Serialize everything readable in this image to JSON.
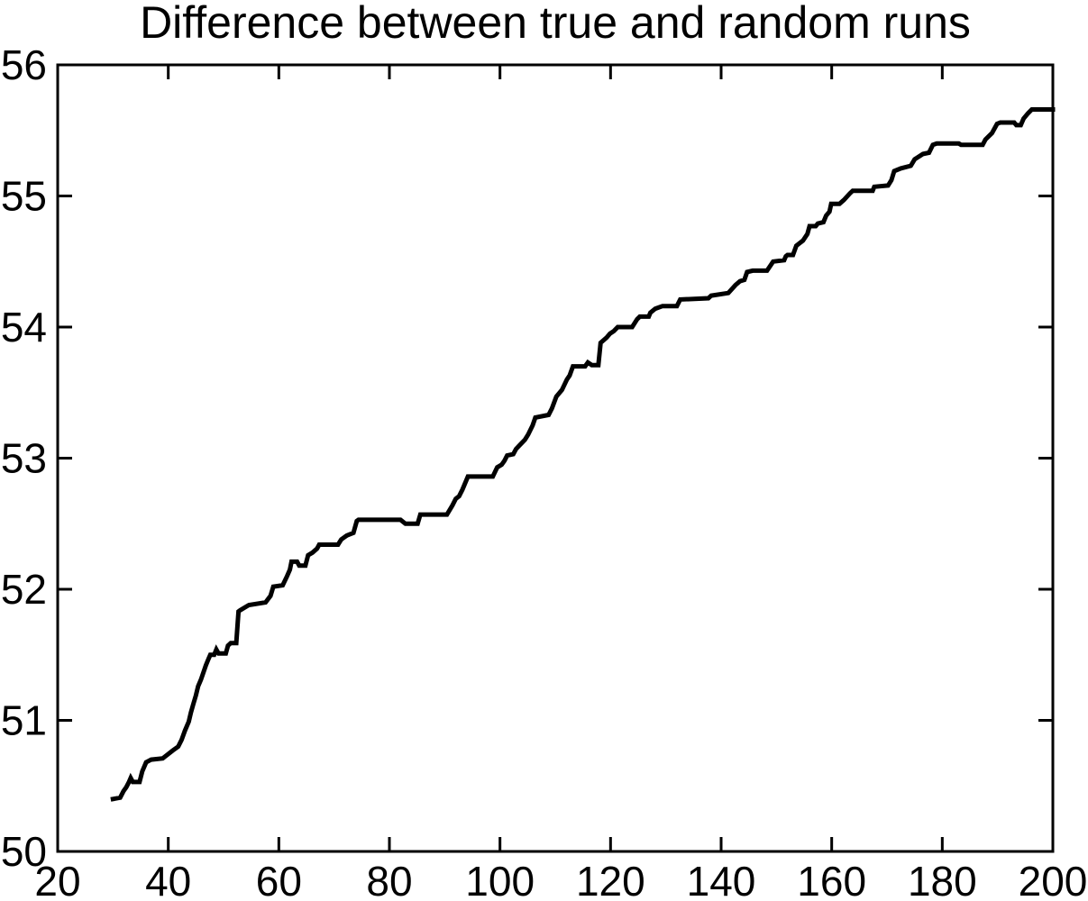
{
  "chart_data": {
    "type": "line",
    "title": "Difference between true and random runs",
    "xlabel": "",
    "ylabel": "",
    "xlim": [
      20,
      200
    ],
    "ylim": [
      50,
      56
    ],
    "xticks": [
      20,
      40,
      60,
      80,
      100,
      120,
      140,
      160,
      180,
      200
    ],
    "yticks": [
      50,
      51,
      52,
      53,
      54,
      55,
      56
    ],
    "grid": false,
    "legend_position": "none",
    "background_color": "#ffffff",
    "axis_color": "#000000",
    "line_color": "#000000",
    "series": [
      {
        "name": "difference-true-vs-random",
        "points": [
          [
            30.0,
            50.4
          ],
          [
            31.3,
            50.41
          ],
          [
            31.9,
            50.46
          ],
          [
            32.4,
            50.49
          ],
          [
            32.9,
            50.53
          ],
          [
            33.2,
            50.56
          ],
          [
            33.6,
            50.53
          ],
          [
            34.8,
            50.53
          ],
          [
            35.3,
            50.61
          ],
          [
            36.0,
            50.68
          ],
          [
            36.9,
            50.7
          ],
          [
            39.0,
            50.71
          ],
          [
            39.6,
            50.73
          ],
          [
            40.8,
            50.77
          ],
          [
            41.8,
            50.8
          ],
          [
            42.4,
            50.85
          ],
          [
            43.0,
            50.92
          ],
          [
            43.7,
            50.99
          ],
          [
            44.1,
            51.06
          ],
          [
            44.5,
            51.12
          ],
          [
            45.0,
            51.19
          ],
          [
            45.4,
            51.26
          ],
          [
            45.9,
            51.31
          ],
          [
            46.4,
            51.37
          ],
          [
            46.8,
            51.42
          ],
          [
            47.3,
            51.47
          ],
          [
            47.6,
            51.5
          ],
          [
            48.3,
            51.5
          ],
          [
            48.7,
            51.54
          ],
          [
            49.1,
            51.51
          ],
          [
            50.4,
            51.51
          ],
          [
            50.8,
            51.57
          ],
          [
            51.3,
            51.59
          ],
          [
            52.3,
            51.59
          ],
          [
            52.7,
            51.83
          ],
          [
            53.0,
            51.84
          ],
          [
            54.2,
            51.87
          ],
          [
            54.6,
            51.88
          ],
          [
            57.6,
            51.9
          ],
          [
            58.5,
            51.95
          ],
          [
            59.0,
            52.02
          ],
          [
            60.7,
            52.03
          ],
          [
            61.5,
            52.1
          ],
          [
            62.0,
            52.15
          ],
          [
            62.3,
            52.21
          ],
          [
            63.3,
            52.21
          ],
          [
            63.7,
            52.18
          ],
          [
            64.8,
            52.18
          ],
          [
            65.3,
            52.26
          ],
          [
            66.1,
            52.28
          ],
          [
            66.9,
            52.31
          ],
          [
            67.3,
            52.34
          ],
          [
            70.7,
            52.34
          ],
          [
            71.3,
            52.38
          ],
          [
            72.3,
            52.41
          ],
          [
            73.5,
            52.43
          ],
          [
            74.1,
            52.52
          ],
          [
            74.4,
            52.53
          ],
          [
            82.0,
            52.53
          ],
          [
            82.9,
            52.5
          ],
          [
            85.1,
            52.5
          ],
          [
            85.6,
            52.57
          ],
          [
            90.4,
            52.57
          ],
          [
            91.4,
            52.64
          ],
          [
            92.0,
            52.69
          ],
          [
            92.6,
            52.71
          ],
          [
            93.2,
            52.76
          ],
          [
            94.2,
            52.86
          ],
          [
            98.7,
            52.86
          ],
          [
            99.5,
            52.93
          ],
          [
            100.3,
            52.95
          ],
          [
            100.8,
            52.98
          ],
          [
            101.3,
            53.02
          ],
          [
            102.4,
            53.03
          ],
          [
            102.9,
            53.07
          ],
          [
            103.6,
            53.1
          ],
          [
            104.5,
            53.14
          ],
          [
            105.1,
            53.18
          ],
          [
            105.9,
            53.25
          ],
          [
            106.4,
            53.31
          ],
          [
            108.8,
            53.33
          ],
          [
            109.4,
            53.38
          ],
          [
            110.2,
            53.47
          ],
          [
            111.2,
            53.52
          ],
          [
            112.1,
            53.6
          ],
          [
            112.6,
            53.63
          ],
          [
            113.2,
            53.7
          ],
          [
            115.4,
            53.7
          ],
          [
            115.9,
            53.73
          ],
          [
            116.6,
            53.71
          ],
          [
            117.8,
            53.71
          ],
          [
            118.2,
            53.88
          ],
          [
            119.3,
            53.92
          ],
          [
            119.9,
            53.95
          ],
          [
            120.6,
            53.97
          ],
          [
            121.3,
            54.0
          ],
          [
            123.9,
            54.0
          ],
          [
            124.8,
            54.06
          ],
          [
            125.3,
            54.08
          ],
          [
            126.9,
            54.08
          ],
          [
            127.2,
            54.11
          ],
          [
            128.1,
            54.14
          ],
          [
            129.4,
            54.16
          ],
          [
            132.0,
            54.16
          ],
          [
            132.6,
            54.21
          ],
          [
            137.7,
            54.22
          ],
          [
            138.2,
            54.24
          ],
          [
            141.3,
            54.26
          ],
          [
            142.6,
            54.32
          ],
          [
            143.4,
            54.35
          ],
          [
            144.2,
            54.36
          ],
          [
            144.7,
            54.42
          ],
          [
            145.7,
            54.43
          ],
          [
            148.3,
            54.43
          ],
          [
            149.4,
            54.5
          ],
          [
            151.4,
            54.51
          ],
          [
            151.7,
            54.54
          ],
          [
            152.0,
            54.55
          ],
          [
            153.0,
            54.55
          ],
          [
            153.6,
            54.62
          ],
          [
            154.8,
            54.66
          ],
          [
            155.6,
            54.71
          ],
          [
            156.0,
            54.77
          ],
          [
            157.1,
            54.77
          ],
          [
            157.5,
            54.79
          ],
          [
            158.5,
            54.8
          ],
          [
            159.0,
            54.85
          ],
          [
            159.6,
            54.88
          ],
          [
            159.9,
            54.94
          ],
          [
            161.4,
            54.94
          ],
          [
            162.2,
            54.97
          ],
          [
            163.3,
            55.02
          ],
          [
            163.8,
            55.04
          ],
          [
            167.4,
            55.04
          ],
          [
            167.7,
            55.07
          ],
          [
            170.2,
            55.08
          ],
          [
            170.8,
            55.12
          ],
          [
            171.3,
            55.19
          ],
          [
            172.5,
            55.21
          ],
          [
            174.3,
            55.23
          ],
          [
            175.0,
            55.28
          ],
          [
            176.5,
            55.32
          ],
          [
            177.6,
            55.33
          ],
          [
            178.3,
            55.39
          ],
          [
            179.0,
            55.4
          ],
          [
            183.0,
            55.4
          ],
          [
            183.4,
            55.39
          ],
          [
            187.3,
            55.39
          ],
          [
            187.8,
            55.43
          ],
          [
            189.0,
            55.48
          ],
          [
            189.9,
            55.55
          ],
          [
            190.5,
            55.56
          ],
          [
            193.0,
            55.56
          ],
          [
            193.4,
            55.54
          ],
          [
            194.2,
            55.54
          ],
          [
            194.7,
            55.59
          ],
          [
            195.5,
            55.63
          ],
          [
            196.2,
            55.66
          ],
          [
            200.0,
            55.66
          ]
        ]
      }
    ]
  }
}
